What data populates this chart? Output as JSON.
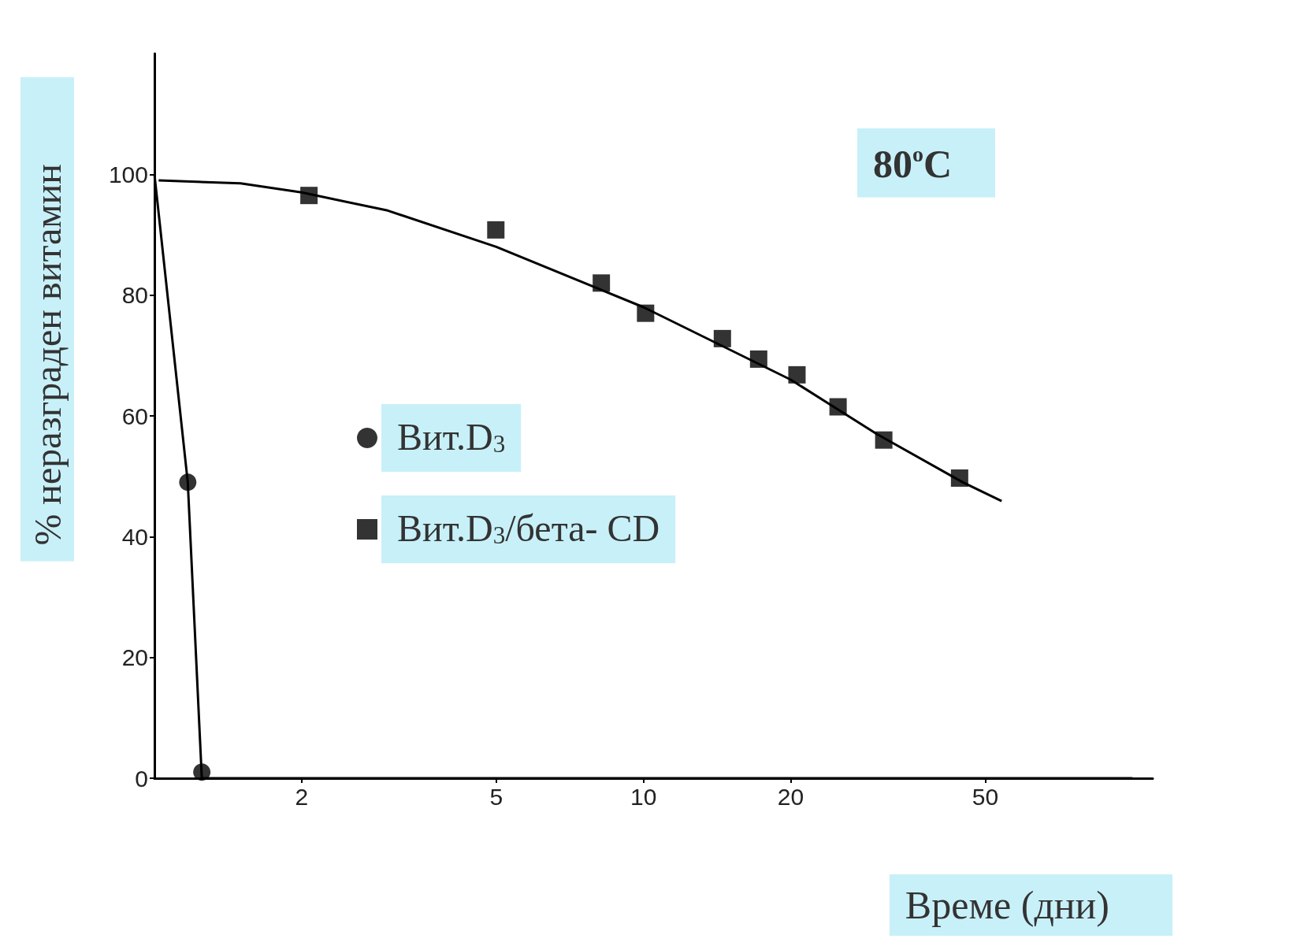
{
  "chart_data": {
    "type": "scatter",
    "title": "80$^{o}$C",
    "xlabel": "Време (дни)",
    "ylabel": "% неразграден витамин",
    "log": "x",
    "xlim": [
      1,
      110
    ],
    "xticks": [
      2,
      5,
      10,
      20,
      50
    ],
    "ylim": [
      0,
      120
    ],
    "yticks": [
      0,
      20,
      40,
      60,
      80,
      100
    ],
    "grid": false,
    "legend": "left",
    "series": [
      {
        "name": "Вит.D$_{3}$",
        "marker": "circle",
        "color": "#000000",
        "x": [
          1.17,
          1.25
        ],
        "values": [
          49,
          1
        ]
      },
      {
        "name": "Вит.D$_{3}$/бета- CD",
        "marker": "square",
        "color": "#000000",
        "x": [
          2.07,
          4.99,
          8.2,
          10.1,
          14.5,
          17.2,
          20.6,
          25,
          31,
          44.3
        ],
        "values": [
          96.5,
          90.8,
          82,
          77,
          72.8,
          69.4,
          66.8,
          61.5,
          56,
          49.7
        ]
      },
      {
        "type": "line",
        "marker": "none",
        "line_style": "solid",
        "color": "#000000",
        "x": [
          1,
          1.17,
          1.25,
          1.3,
          100
        ],
        "values": [
          100,
          49,
          0,
          0,
          0
        ]
      },
      {
        "type": "line",
        "marker": "none",
        "line_style": "solid",
        "color": "#000000",
        "x": [
          1.02,
          1.5,
          2,
          3,
          5,
          10,
          20,
          30,
          45,
          54
        ],
        "values": [
          99,
          98.5,
          97,
          94,
          88,
          78,
          66,
          57,
          49,
          45.9
        ]
      }
    ]
  }
}
